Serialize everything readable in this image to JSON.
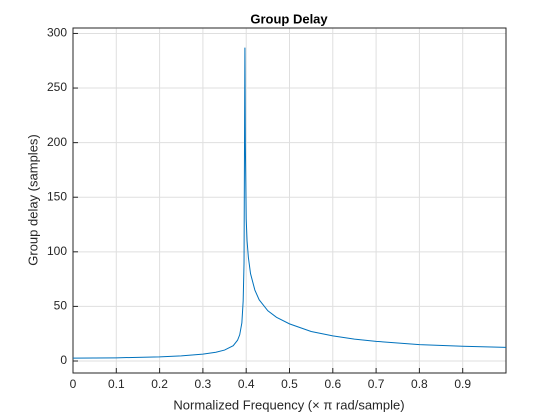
{
  "chart_data": {
    "type": "line",
    "title": "Group Delay",
    "x_label": "Normalized  Frequency    (× π  rad/sample)",
    "y_label": "Group delay (samples)",
    "xlim": [
      0,
      1
    ],
    "ylim": [
      -11,
      305
    ],
    "xticks": [
      0,
      0.1,
      0.2,
      0.3,
      0.4,
      0.5,
      0.6,
      0.7,
      0.8,
      0.9
    ],
    "yticks": [
      0,
      50,
      100,
      150,
      200,
      250,
      300
    ],
    "grid": true,
    "series": [
      {
        "color": "#0072bd",
        "x": [
          0,
          0.1,
          0.2,
          0.25,
          0.3,
          0.33,
          0.35,
          0.37,
          0.38,
          0.385,
          0.39,
          0.393,
          0.395,
          0.397,
          0.398,
          0.4,
          0.402,
          0.405,
          0.41,
          0.42,
          0.43,
          0.45,
          0.47,
          0.5,
          0.55,
          0.6,
          0.65,
          0.7,
          0.8,
          0.9,
          1.0
        ],
        "values": [
          2.6,
          2.9,
          3.8,
          4.7,
          6.3,
          8,
          10,
          14,
          19,
          24,
          35,
          55,
          90,
          287,
          200,
          130,
          110,
          95,
          80,
          65,
          56,
          46,
          40,
          34,
          27,
          23,
          20,
          18,
          15,
          13.5,
          12.5
        ]
      }
    ]
  }
}
